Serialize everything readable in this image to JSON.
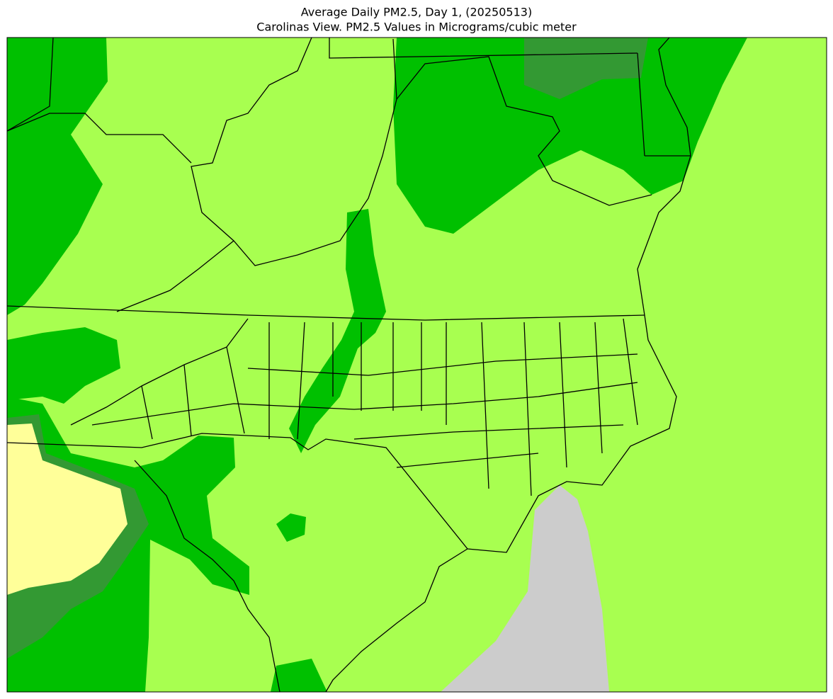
{
  "header": {
    "title": "Average Daily PM2.5, Day 1, (20250513)",
    "subtitle": "Carolinas View. PM2.5 Values in Micrograms/cubic meter"
  }
}
